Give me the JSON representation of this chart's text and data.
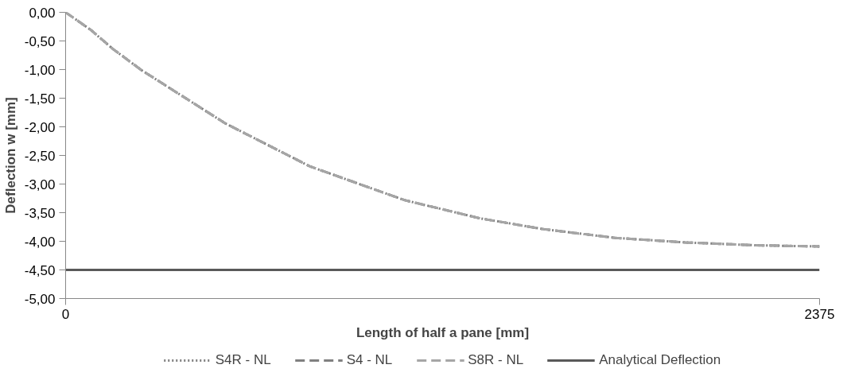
{
  "chart_data": {
    "type": "line",
    "xlabel": "Length of half a pane [mm]",
    "ylabel": "Deflection w [mm]",
    "x": [
      0,
      80,
      149,
      239,
      503,
      769,
      1067,
      1306,
      1508,
      1731,
      1952,
      2172,
      2375
    ],
    "series": [
      {
        "name": "S4R - NL",
        "color": "#7f7f7f",
        "line_style": "dotted",
        "values": [
          0,
          -0.31,
          -0.64,
          -1.01,
          -1.94,
          -2.69,
          -3.28,
          -3.6,
          -3.79,
          -3.94,
          -4.02,
          -4.07,
          -4.09
        ]
      },
      {
        "name": "S4 - NL",
        "color": "#808080",
        "line_style": "dashed",
        "values": [
          0,
          -0.31,
          -0.64,
          -1.01,
          -1.94,
          -2.69,
          -3.28,
          -3.6,
          -3.79,
          -3.94,
          -4.02,
          -4.07,
          -4.09
        ]
      },
      {
        "name": "S8R - NL",
        "color": "#a6a6a6",
        "line_style": "dashed",
        "values": [
          0,
          -0.31,
          -0.64,
          -1.01,
          -1.94,
          -2.69,
          -3.28,
          -3.6,
          -3.79,
          -3.94,
          -4.02,
          -4.07,
          -4.09
        ]
      },
      {
        "name": "Analytical Deflection",
        "color": "#595959",
        "line_style": "solid",
        "x": [
          0,
          2375
        ],
        "values": [
          -4.5,
          -4.5
        ]
      }
    ],
    "xlim": [
      0,
      2375
    ],
    "xticks": [
      0,
      2375
    ],
    "ylim": [
      -5,
      0
    ],
    "yticks": [
      {
        "value": 0,
        "label": "0,00"
      },
      {
        "value": -0.5,
        "label": "-0,50"
      },
      {
        "value": -1,
        "label": "-1,00"
      },
      {
        "value": -1.5,
        "label": "-1,50"
      },
      {
        "value": -2,
        "label": "-2,00"
      },
      {
        "value": -2.5,
        "label": "-2,50"
      },
      {
        "value": -3,
        "label": "-3,00"
      },
      {
        "value": -3.5,
        "label": "-3,50"
      },
      {
        "value": -4,
        "label": "-4,00"
      },
      {
        "value": -4.5,
        "label": "-4,50"
      },
      {
        "value": -5,
        "label": "-5,00"
      }
    ],
    "grid": false,
    "legend": "bottom",
    "marker": "none"
  }
}
